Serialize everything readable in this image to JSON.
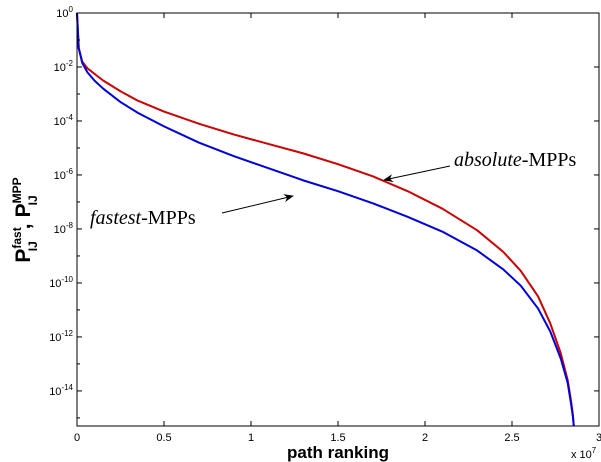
{
  "chart_data": {
    "type": "line",
    "xlabel": "path ranking",
    "x_multiplier": "x 10",
    "x_multiplier_exp": "7",
    "ylabel_parts": {
      "p1": "P",
      "p1_sup": "fast",
      "p1_sub": "IJ",
      "sep": ",",
      "p2": "P",
      "p2_sup": "MPP",
      "p2_sub": "IJ"
    },
    "xlim": [
      0,
      30000000.0
    ],
    "ylim_exponents": [
      -15.3,
      0
    ],
    "y_scale": "log",
    "grid": false,
    "x_ticks": [
      {
        "value": 0,
        "label": "0"
      },
      {
        "value": 5000000,
        "label": "0.5"
      },
      {
        "value": 10000000,
        "label": "1"
      },
      {
        "value": 15000000,
        "label": "1.5"
      },
      {
        "value": 20000000,
        "label": "2"
      },
      {
        "value": 25000000,
        "label": "2.5"
      },
      {
        "value": 30000000,
        "label": "3"
      }
    ],
    "y_ticks": [
      {
        "exp": 0,
        "base": "10",
        "sup": "0"
      },
      {
        "exp": -2,
        "base": "10",
        "sup": "-2"
      },
      {
        "exp": -4,
        "base": "10",
        "sup": "-4"
      },
      {
        "exp": -6,
        "base": "10",
        "sup": "-6"
      },
      {
        "exp": -8,
        "base": "10",
        "sup": "-8"
      },
      {
        "exp": -10,
        "base": "10",
        "sup": "-10"
      },
      {
        "exp": -12,
        "base": "10",
        "sup": "-12"
      },
      {
        "exp": -14,
        "base": "10",
        "sup": "-14"
      }
    ],
    "series": [
      {
        "name": "absolute-MPPs",
        "color": "#cc0000",
        "x": [
          0,
          100000,
          300000,
          600000,
          1000000,
          1500000,
          2500000,
          3500000,
          5000000,
          7000000,
          9000000,
          11000000,
          13000000,
          15000000,
          17000000,
          19000000,
          21000000,
          23000000,
          24500000,
          25500000,
          26500000,
          27200000,
          27800000,
          28200000,
          28400000,
          28500000,
          28550000
        ],
        "log10_y": [
          0,
          -1.3,
          -1.8,
          -2.05,
          -2.25,
          -2.5,
          -2.9,
          -3.25,
          -3.65,
          -4.1,
          -4.5,
          -4.85,
          -5.2,
          -5.6,
          -6.05,
          -6.6,
          -7.25,
          -8.05,
          -8.85,
          -9.55,
          -10.5,
          -11.5,
          -12.6,
          -13.6,
          -14.4,
          -14.9,
          -15.3
        ]
      },
      {
        "name": "fastest-MPPs",
        "color": "#0000dd",
        "x": [
          0,
          100000,
          300000,
          600000,
          1000000,
          1500000,
          2500000,
          3500000,
          5000000,
          7000000,
          9000000,
          11000000,
          13000000,
          15000000,
          17000000,
          19000000,
          21000000,
          23000000,
          24500000,
          25500000,
          26500000,
          27200000,
          27800000,
          28200000,
          28400000,
          28500000,
          28550000
        ],
        "log10_y": [
          0,
          -1.3,
          -1.85,
          -2.2,
          -2.5,
          -2.8,
          -3.3,
          -3.7,
          -4.2,
          -4.8,
          -5.3,
          -5.75,
          -6.2,
          -6.6,
          -7.05,
          -7.55,
          -8.1,
          -8.8,
          -9.5,
          -10.1,
          -10.95,
          -11.8,
          -12.8,
          -13.7,
          -14.5,
          -14.95,
          -15.3
        ]
      }
    ],
    "annotations": [
      {
        "italic": "absolute",
        "rest": "-MPPs",
        "target_series": "absolute-MPPs",
        "arrow_to": [
          17500000,
          -6.05
        ]
      },
      {
        "italic": "fastest",
        "rest": "-MPPs",
        "target_series": "fastest-MPPs",
        "arrow_to": [
          12500000,
          -7.1
        ]
      }
    ]
  }
}
